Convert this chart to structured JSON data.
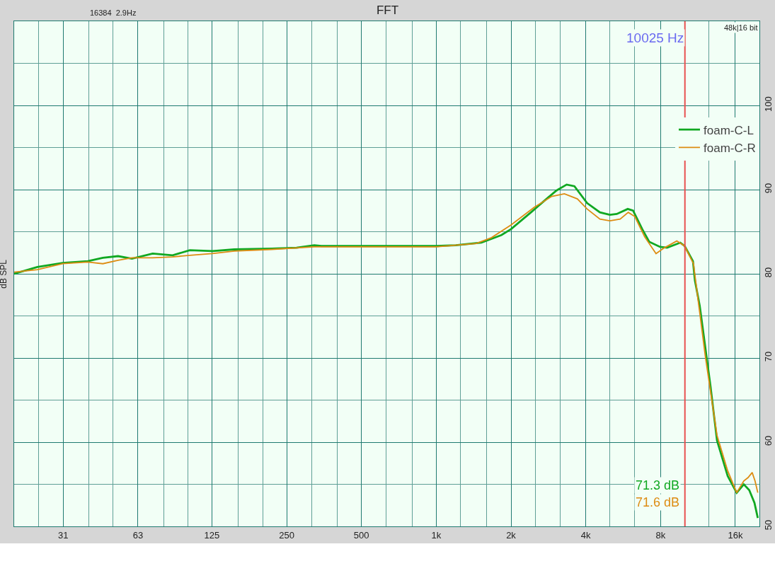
{
  "chart_data": {
    "type": "line",
    "title": "FFT",
    "ylabel": "dB SPL",
    "x": [
      20,
      24.8,
      31.4,
      39.6,
      45.5,
      52.4,
      59.6,
      72.2,
      86.9,
      101.9,
      125.6,
      154,
      218,
      274,
      323,
      345,
      434,
      588,
      1000,
      1200,
      1520,
      1830,
      2000,
      2430,
      2780,
      3050,
      3350,
      3600,
      4050,
      4560,
      5000,
      5330,
      5900,
      6200,
      6750,
      7200,
      7960,
      8500,
      9600,
      10000,
      10800,
      11000,
      11500,
      12700,
      13500,
      14900,
      16200,
      17300,
      18200,
      19100,
      19700
    ],
    "series": [
      {
        "name": "foam-C-L",
        "color": "#11a822",
        "values": [
          80.0,
          80.8,
          81.3,
          81.5,
          81.9,
          82.1,
          81.8,
          82.4,
          82.2,
          82.8,
          82.7,
          82.9,
          83.0,
          83.1,
          83.4,
          83.3,
          83.3,
          83.3,
          83.3,
          83.4,
          83.7,
          84.6,
          85.3,
          87.4,
          88.9,
          89.9,
          90.6,
          90.4,
          88.4,
          87.3,
          87.0,
          87.1,
          87.7,
          87.5,
          85.3,
          83.8,
          83.2,
          83.1,
          83.7,
          83.3,
          81.5,
          79.2,
          76.2,
          66.7,
          60.2,
          56.0,
          54.0,
          55.0,
          54.3,
          52.8,
          51.0
        ]
      },
      {
        "name": "foam-C-R",
        "color": "#dd8c12",
        "x": [
          20,
          24.8,
          31.4,
          39.6,
          45.5,
          52.4,
          59.6,
          72.2,
          86.9,
          101.9,
          125.6,
          154,
          218,
          323,
          434,
          588,
          1000,
          1450,
          1670,
          2000,
          2480,
          2920,
          3280,
          3700,
          4050,
          4560,
          5000,
          5500,
          5930,
          6300,
          6900,
          7670,
          8300,
          9300,
          10000,
          10850,
          12100,
          13500,
          14900,
          16200,
          17300,
          18000,
          18700,
          19200,
          19700
        ],
        "values": [
          80.2,
          80.5,
          81.2,
          81.4,
          81.2,
          81.6,
          81.9,
          81.9,
          82.0,
          82.2,
          82.4,
          82.7,
          82.9,
          83.2,
          83.2,
          83.2,
          83.2,
          83.6,
          84.3,
          85.8,
          87.9,
          89.2,
          89.5,
          88.9,
          87.7,
          86.5,
          86.3,
          86.5,
          87.3,
          86.8,
          84.4,
          82.4,
          83.1,
          83.9,
          83.3,
          81.2,
          70.3,
          60.8,
          56.6,
          54.0,
          55.4,
          55.8,
          56.4,
          55.4,
          54.0
        ]
      }
    ],
    "log": "x",
    "xlim": [
      20,
      20000
    ],
    "xticks": [
      {
        "value": 20,
        "label": null
      },
      {
        "value": 25,
        "label": null
      },
      {
        "value": 31.5,
        "label": "31"
      },
      {
        "value": 40,
        "label": null
      },
      {
        "value": 50,
        "label": null
      },
      63,
      {
        "value": 80,
        "label": null
      },
      {
        "value": 100,
        "label": null
      },
      125,
      {
        "value": 160,
        "label": null
      },
      {
        "value": 200,
        "label": null
      },
      250,
      {
        "value": 315,
        "label": null
      },
      {
        "value": 400,
        "label": null
      },
      500,
      {
        "value": 630,
        "label": null
      },
      {
        "value": 800,
        "label": null
      },
      {
        "value": 1000,
        "label": "1k"
      },
      {
        "value": 1250,
        "label": null
      },
      {
        "value": 1600,
        "label": null
      },
      {
        "value": 2000,
        "label": "2k"
      },
      {
        "value": 2500,
        "label": null
      },
      {
        "value": 3150,
        "label": null
      },
      {
        "value": 4000,
        "label": "4k"
      },
      {
        "value": 5000,
        "label": null
      },
      {
        "value": 6300,
        "label": null
      },
      {
        "value": 8000,
        "label": "8k"
      },
      {
        "value": 10000,
        "label": null
      },
      {
        "value": 12500,
        "label": null
      },
      {
        "value": 16000,
        "label": "16k"
      },
      {
        "value": 20000,
        "label": null
      }
    ],
    "ylim": [
      50,
      110
    ],
    "yticks": [
      50,
      {
        "value": 55,
        "label": null
      },
      60,
      {
        "value": 65,
        "label": null
      },
      70,
      {
        "value": 75,
        "label": null
      },
      80,
      {
        "value": 85,
        "label": null
      },
      90,
      {
        "value": 95,
        "label": null
      },
      100,
      {
        "value": 105,
        "label": null
      },
      {
        "value": 110,
        "label": null
      }
    ],
    "grid": true,
    "legend": "top right",
    "line_style": "solid",
    "marker": "none",
    "ref_lines": [
      {
        "axis": "x",
        "value": 10025,
        "label": "10025 Hz",
        "color": "#e85050"
      }
    ],
    "annotations": [
      "16384  2.9Hz",
      "48k|16 bit",
      "71.3 dB",
      "71.6 dB"
    ]
  }
}
